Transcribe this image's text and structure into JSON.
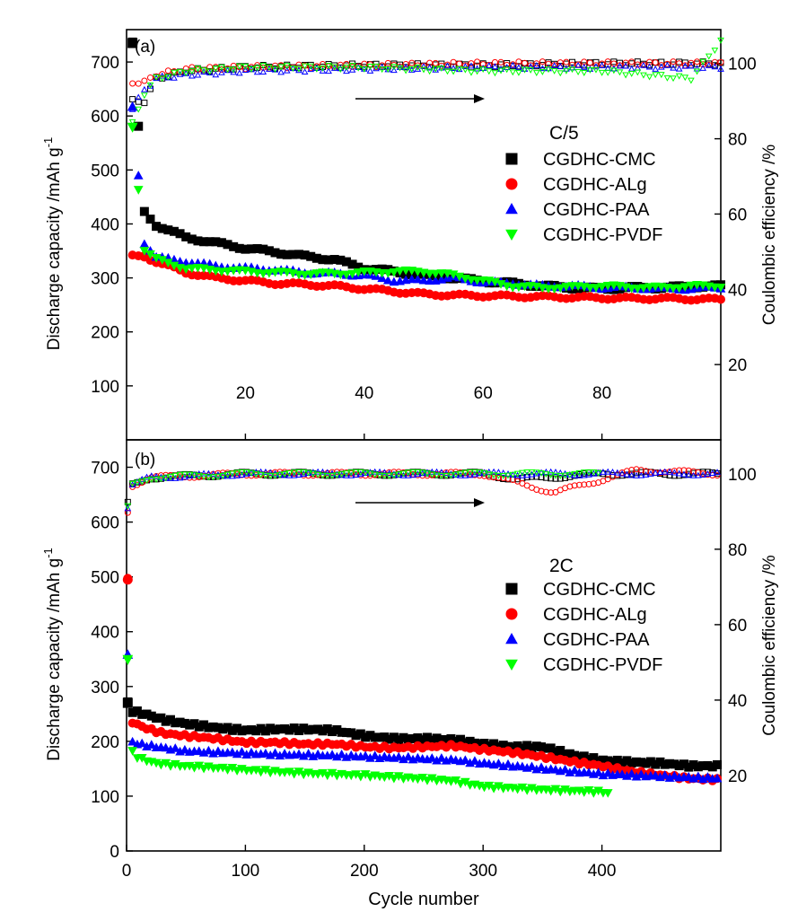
{
  "chart_data": [
    {
      "type": "scatter",
      "panel_label": "(a)",
      "xlabel": "",
      "ylabel": "Discharge capacity /mAh g",
      "ylabel_sup": "-1",
      "y2label": "Coulombic efficiency /%",
      "xlim": [
        0,
        100
      ],
      "ylim": [
        0,
        760
      ],
      "y2lim": [
        0,
        109
      ],
      "x_ticks": [
        20,
        40,
        60,
        80
      ],
      "y_ticks": [
        100,
        200,
        300,
        400,
        500,
        600,
        700
      ],
      "y2_ticks": [
        20,
        40,
        60,
        80,
        100
      ],
      "legend_title": "C/5",
      "legend_position": "right",
      "arrow_direction": "right",
      "series": [
        {
          "name": "CGDHC-CMC",
          "marker": "square",
          "color": "#000000",
          "capacity": [
            [
              1,
              735
            ],
            [
              3,
              422
            ],
            [
              5,
              398
            ],
            [
              10,
              375
            ],
            [
              15,
              365
            ],
            [
              20,
              355
            ],
            [
              25,
              348
            ],
            [
              30,
              340
            ],
            [
              35,
              334
            ],
            [
              40,
              318
            ],
            [
              45,
              312
            ],
            [
              50,
              305
            ],
            [
              55,
              300
            ],
            [
              60,
              294
            ],
            [
              65,
              290
            ],
            [
              70,
              285
            ],
            [
              75,
              282
            ],
            [
              80,
              280
            ],
            [
              85,
              282
            ],
            [
              90,
              282
            ],
            [
              95,
              284
            ],
            [
              100,
              285
            ]
          ],
          "efficiency": [
            [
              3,
              90
            ],
            [
              5,
              96
            ],
            [
              10,
              98
            ],
            [
              20,
              99
            ],
            [
              40,
              99.5
            ],
            [
              60,
              99.5
            ],
            [
              80,
              100
            ],
            [
              100,
              100
            ]
          ]
        },
        {
          "name": "CGDHC-ALg",
          "marker": "circle",
          "color": "#ff0000",
          "capacity": [
            [
              3,
              340
            ],
            [
              5,
              330
            ],
            [
              10,
              310
            ],
            [
              15,
              300
            ],
            [
              20,
              295
            ],
            [
              25,
              290
            ],
            [
              30,
              288
            ],
            [
              35,
              285
            ],
            [
              40,
              280
            ],
            [
              45,
              275
            ],
            [
              50,
              270
            ],
            [
              55,
              268
            ],
            [
              60,
              267
            ],
            [
              65,
              266
            ],
            [
              70,
              265
            ],
            [
              75,
              264
            ],
            [
              80,
              263
            ],
            [
              85,
              262
            ],
            [
              90,
              262
            ],
            [
              95,
              261
            ],
            [
              100,
              260
            ]
          ],
          "efficiency": [
            [
              3,
              95
            ],
            [
              5,
              97
            ],
            [
              10,
              98.5
            ],
            [
              20,
              99
            ],
            [
              40,
              99.5
            ],
            [
              60,
              100
            ],
            [
              80,
              100
            ],
            [
              100,
              100
            ]
          ]
        },
        {
          "name": "CGDHC-PAA",
          "marker": "triangle-up",
          "color": "#0000ff",
          "capacity": [
            [
              1,
              617
            ],
            [
              3,
              365
            ],
            [
              5,
              338
            ],
            [
              10,
              330
            ],
            [
              15,
              322
            ],
            [
              20,
              318
            ],
            [
              25,
              315
            ],
            [
              30,
              310
            ],
            [
              35,
              308
            ],
            [
              40,
              305
            ],
            [
              45,
              295
            ],
            [
              50,
              295
            ],
            [
              55,
              300
            ],
            [
              60,
              292
            ],
            [
              65,
              290
            ],
            [
              70,
              285
            ],
            [
              75,
              285
            ],
            [
              80,
              282
            ],
            [
              85,
              282
            ],
            [
              90,
              280
            ],
            [
              95,
              280
            ],
            [
              100,
              282
            ]
          ],
          "efficiency": [
            [
              1,
              88
            ],
            [
              3,
              93
            ],
            [
              5,
              96
            ],
            [
              10,
              97
            ],
            [
              20,
              98
            ],
            [
              40,
              98.5
            ],
            [
              60,
              99
            ],
            [
              80,
              99
            ],
            [
              100,
              99
            ]
          ]
        },
        {
          "name": "CGDHC-PVDF",
          "marker": "triangle-down",
          "color": "#00ff00",
          "capacity": [
            [
              1,
              580
            ],
            [
              3,
              352
            ],
            [
              5,
              335
            ],
            [
              10,
              318
            ],
            [
              15,
              315
            ],
            [
              20,
              312
            ],
            [
              25,
              310
            ],
            [
              30,
              308
            ],
            [
              35,
              308
            ],
            [
              40,
              310
            ],
            [
              45,
              312
            ],
            [
              50,
              312
            ],
            [
              55,
              305
            ],
            [
              60,
              295
            ],
            [
              65,
              285
            ],
            [
              70,
              282
            ],
            [
              75,
              283
            ],
            [
              80,
              285
            ],
            [
              85,
              283
            ],
            [
              90,
              282
            ],
            [
              95,
              285
            ],
            [
              100,
              285
            ]
          ],
          "efficiency": [
            [
              1,
              84
            ],
            [
              3,
              92
            ],
            [
              5,
              96
            ],
            [
              10,
              98
            ],
            [
              20,
              99
            ],
            [
              40,
              99
            ],
            [
              60,
              98
            ],
            [
              80,
              98
            ],
            [
              95,
              96
            ],
            [
              100,
              106
            ]
          ]
        }
      ]
    },
    {
      "type": "scatter",
      "panel_label": "(b)",
      "xlabel": "Cycle number",
      "ylabel": "Discharge capacity /mAh g",
      "ylabel_sup": "-1",
      "y2label": "Coulombic efficiency /%",
      "xlim": [
        0,
        500
      ],
      "ylim": [
        0,
        750
      ],
      "y2lim": [
        0,
        109
      ],
      "x_ticks": [
        0,
        100,
        200,
        300,
        400
      ],
      "y_ticks": [
        0,
        100,
        200,
        300,
        400,
        500,
        600,
        700
      ],
      "y2_ticks": [
        20,
        40,
        60,
        80,
        100
      ],
      "legend_title": "2C",
      "legend_position": "right",
      "arrow_direction": "right",
      "series": [
        {
          "name": "CGDHC-CMC",
          "marker": "square",
          "color": "#000000",
          "capacity": [
            [
              1,
              270
            ],
            [
              5,
              255
            ],
            [
              15,
              250
            ],
            [
              30,
              240
            ],
            [
              50,
              232
            ],
            [
              75,
              225
            ],
            [
              100,
              220
            ],
            [
              125,
              222
            ],
            [
              150,
              222
            ],
            [
              175,
              220
            ],
            [
              200,
              210
            ],
            [
              225,
              205
            ],
            [
              250,
              205
            ],
            [
              275,
              203
            ],
            [
              300,
              195
            ],
            [
              325,
              190
            ],
            [
              350,
              190
            ],
            [
              375,
              175
            ],
            [
              400,
              165
            ],
            [
              425,
              162
            ],
            [
              450,
              160
            ],
            [
              475,
              155
            ],
            [
              500,
              155
            ]
          ],
          "efficiency": [
            [
              1,
              92
            ],
            [
              5,
              97
            ],
            [
              20,
              99
            ],
            [
              100,
              100
            ],
            [
              200,
              100
            ],
            [
              300,
              100
            ],
            [
              330,
              98.5
            ],
            [
              400,
              100
            ],
            [
              500,
              100
            ]
          ]
        },
        {
          "name": "CGDHC-ALg",
          "marker": "circle",
          "color": "#ff0000",
          "capacity": [
            [
              1,
              495
            ],
            [
              2,
              245
            ],
            [
              5,
              235
            ],
            [
              15,
              225
            ],
            [
              30,
              215
            ],
            [
              50,
              210
            ],
            [
              75,
              205
            ],
            [
              100,
              198
            ],
            [
              125,
              198
            ],
            [
              150,
              195
            ],
            [
              175,
              195
            ],
            [
              200,
              190
            ],
            [
              225,
              188
            ],
            [
              250,
              190
            ],
            [
              275,
              192
            ],
            [
              300,
              185
            ],
            [
              325,
              180
            ],
            [
              350,
              172
            ],
            [
              375,
              163
            ],
            [
              400,
              155
            ],
            [
              425,
              145
            ],
            [
              450,
              138
            ],
            [
              475,
              132
            ],
            [
              500,
              130
            ]
          ],
          "efficiency": [
            [
              1,
              90
            ],
            [
              5,
              97
            ],
            [
              20,
              99
            ],
            [
              100,
              100
            ],
            [
              200,
              100
            ],
            [
              300,
              100
            ],
            [
              360,
              95
            ],
            [
              430,
              101
            ],
            [
              500,
              100
            ]
          ]
        },
        {
          "name": "CGDHC-PAA",
          "marker": "triangle-up",
          "color": "#0000ff",
          "capacity": [
            [
              1,
              358
            ],
            [
              3,
              200
            ],
            [
              10,
              195
            ],
            [
              25,
              190
            ],
            [
              50,
              182
            ],
            [
              75,
              180
            ],
            [
              100,
              178
            ],
            [
              125,
              176
            ],
            [
              150,
              175
            ],
            [
              175,
              174
            ],
            [
              200,
              172
            ],
            [
              225,
              170
            ],
            [
              250,
              168
            ],
            [
              275,
              166
            ],
            [
              300,
              160
            ],
            [
              325,
              155
            ],
            [
              350,
              150
            ],
            [
              375,
              145
            ],
            [
              400,
              140
            ],
            [
              425,
              138
            ],
            [
              450,
              136
            ],
            [
              475,
              134
            ],
            [
              500,
              132
            ]
          ],
          "efficiency": [
            [
              1,
              91
            ],
            [
              5,
              97
            ],
            [
              20,
              99
            ],
            [
              100,
              100
            ],
            [
              200,
              100
            ],
            [
              300,
              100
            ],
            [
              400,
              100
            ],
            [
              500,
              100
            ]
          ]
        },
        {
          "name": "CGDHC-PVDF",
          "marker": "triangle-down",
          "color": "#00ff00",
          "capacity": [
            [
              1,
              350
            ],
            [
              3,
              185
            ],
            [
              10,
              170
            ],
            [
              25,
              160
            ],
            [
              50,
              155
            ],
            [
              75,
              152
            ],
            [
              100,
              148
            ],
            [
              125,
              145
            ],
            [
              150,
              142
            ],
            [
              175,
              140
            ],
            [
              200,
              138
            ],
            [
              225,
              135
            ],
            [
              250,
              132
            ],
            [
              275,
              128
            ],
            [
              300,
              118
            ],
            [
              325,
              115
            ],
            [
              350,
              112
            ],
            [
              375,
              110
            ],
            [
              400,
              108
            ],
            [
              405,
              106
            ]
          ],
          "efficiency": [
            [
              1,
              91
            ],
            [
              5,
              97
            ],
            [
              20,
              99
            ],
            [
              100,
              100
            ],
            [
              200,
              100
            ],
            [
              300,
              100
            ],
            [
              400,
              100
            ]
          ]
        }
      ]
    }
  ]
}
